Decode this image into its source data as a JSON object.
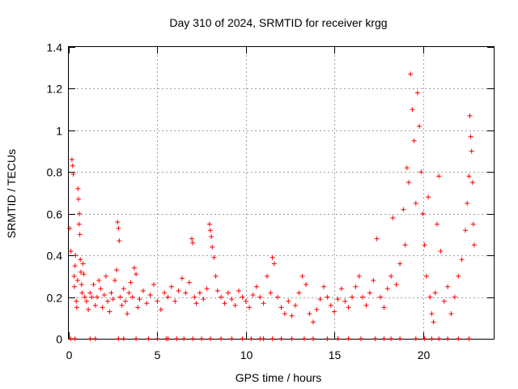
{
  "chart_data": {
    "type": "scatter",
    "title": "Day 310 of 2024, SRMTID for receiver krgg",
    "xlabel": "GPS time / hours",
    "ylabel": "SRMTID / TECUs",
    "xlim": [
      0,
      24
    ],
    "ylim": [
      0,
      1.4
    ],
    "xticks": [
      0,
      5,
      10,
      15,
      20
    ],
    "xtick_labels": [
      "0",
      "5",
      "10",
      "15",
      "20"
    ],
    "yticks": [
      0,
      0.2,
      0.4,
      0.6,
      0.8,
      1.0,
      1.2,
      1.4
    ],
    "ytick_labels": [
      "0",
      "0.2",
      "0.4",
      "0.6",
      "0.8",
      "1",
      "1.2",
      "1.4"
    ],
    "grid": true,
    "marker": "+",
    "color": "#ff0000",
    "series": [
      {
        "name": "SRMTID",
        "points": [
          [
            0.05,
            0.53
          ],
          [
            0.12,
            0.42
          ],
          [
            0.18,
            0.86
          ],
          [
            0.22,
            0.83
          ],
          [
            0.25,
            0.79
          ],
          [
            0.3,
            0.3
          ],
          [
            0.32,
            0.25
          ],
          [
            0.35,
            0.35
          ],
          [
            0.38,
            0.4
          ],
          [
            0.42,
            0.18
          ],
          [
            0.45,
            0.15
          ],
          [
            0.5,
            0.28
          ],
          [
            0.52,
            0.72
          ],
          [
            0.55,
            0.67
          ],
          [
            0.58,
            0.55
          ],
          [
            0.6,
            0.6
          ],
          [
            0.62,
            0.5
          ],
          [
            0.65,
            0.38
          ],
          [
            0.68,
            0.32
          ],
          [
            0.72,
            0.26
          ],
          [
            0.75,
            0.22
          ],
          [
            0.8,
            0.36
          ],
          [
            0.85,
            0.31
          ],
          [
            0.9,
            0.2
          ],
          [
            1.0,
            0.18
          ],
          [
            1.1,
            0.14
          ],
          [
            1.2,
            0.22
          ],
          [
            1.3,
            0.2
          ],
          [
            1.4,
            0.26
          ],
          [
            1.5,
            0.16
          ],
          [
            1.6,
            0.2
          ],
          [
            1.7,
            0.28
          ],
          [
            1.8,
            0.24
          ],
          [
            1.9,
            0.15
          ],
          [
            2.0,
            0.21
          ],
          [
            2.1,
            0.3
          ],
          [
            2.2,
            0.18
          ],
          [
            2.3,
            0.13
          ],
          [
            2.4,
            0.22
          ],
          [
            2.5,
            0.19
          ],
          [
            2.6,
            0.28
          ],
          [
            2.7,
            0.33
          ],
          [
            2.75,
            0.56
          ],
          [
            2.8,
            0.53
          ],
          [
            2.85,
            0.47
          ],
          [
            2.9,
            0.2
          ],
          [
            3.0,
            0.16
          ],
          [
            3.1,
            0.24
          ],
          [
            3.2,
            0.18
          ],
          [
            3.3,
            0.12
          ],
          [
            3.4,
            0.22
          ],
          [
            3.5,
            0.27
          ],
          [
            3.6,
            0.2
          ],
          [
            3.7,
            0.34
          ],
          [
            3.8,
            0.31
          ],
          [
            3.9,
            0.15
          ],
          [
            4.0,
            0.19
          ],
          [
            4.2,
            0.23
          ],
          [
            4.4,
            0.17
          ],
          [
            4.6,
            0.21
          ],
          [
            4.8,
            0.26
          ],
          [
            5.0,
            0.18
          ],
          [
            5.2,
            0.14
          ],
          [
            5.4,
            0.22
          ],
          [
            5.6,
            0.2
          ],
          [
            5.8,
            0.25
          ],
          [
            6.0,
            0.18
          ],
          [
            6.2,
            0.23
          ],
          [
            6.4,
            0.29
          ],
          [
            6.6,
            0.22
          ],
          [
            6.8,
            0.27
          ],
          [
            6.95,
            0.48
          ],
          [
            7.0,
            0.46
          ],
          [
            7.1,
            0.2
          ],
          [
            7.2,
            0.17
          ],
          [
            7.4,
            0.22
          ],
          [
            7.6,
            0.19
          ],
          [
            7.8,
            0.24
          ],
          [
            7.95,
            0.55
          ],
          [
            8.0,
            0.52
          ],
          [
            8.05,
            0.49
          ],
          [
            8.1,
            0.44
          ],
          [
            8.2,
            0.39
          ],
          [
            8.3,
            0.3
          ],
          [
            8.4,
            0.23
          ],
          [
            8.6,
            0.2
          ],
          [
            8.8,
            0.17
          ],
          [
            9.0,
            0.22
          ],
          [
            9.2,
            0.19
          ],
          [
            9.4,
            0.16
          ],
          [
            9.6,
            0.23
          ],
          [
            9.8,
            0.2
          ],
          [
            10.0,
            0.18
          ],
          [
            10.2,
            0.15
          ],
          [
            10.4,
            0.21
          ],
          [
            10.6,
            0.25
          ],
          [
            10.8,
            0.2
          ],
          [
            11.0,
            0.17
          ],
          [
            11.2,
            0.3
          ],
          [
            11.4,
            0.22
          ],
          [
            11.5,
            0.39
          ],
          [
            11.6,
            0.36
          ],
          [
            11.8,
            0.2
          ],
          [
            12.0,
            0.15
          ],
          [
            12.2,
            0.12
          ],
          [
            12.4,
            0.18
          ],
          [
            12.6,
            0.11
          ],
          [
            12.8,
            0.16
          ],
          [
            13.0,
            0.22
          ],
          [
            13.2,
            0.3
          ],
          [
            13.4,
            0.26
          ],
          [
            13.6,
            0.12
          ],
          [
            13.8,
            0.08
          ],
          [
            14.0,
            0.14
          ],
          [
            14.2,
            0.19
          ],
          [
            14.4,
            0.25
          ],
          [
            14.6,
            0.2
          ],
          [
            14.8,
            0.16
          ],
          [
            15.0,
            0.13
          ],
          [
            15.2,
            0.19
          ],
          [
            15.4,
            0.24
          ],
          [
            15.6,
            0.18
          ],
          [
            15.8,
            0.15
          ],
          [
            16.0,
            0.2
          ],
          [
            16.2,
            0.25
          ],
          [
            16.4,
            0.3
          ],
          [
            16.6,
            0.2
          ],
          [
            16.8,
            0.16
          ],
          [
            17.0,
            0.22
          ],
          [
            17.2,
            0.28
          ],
          [
            17.4,
            0.48
          ],
          [
            17.6,
            0.2
          ],
          [
            17.8,
            0.15
          ],
          [
            18.0,
            0.24
          ],
          [
            18.2,
            0.3
          ],
          [
            18.3,
            0.58
          ],
          [
            18.5,
            0.26
          ],
          [
            18.7,
            0.36
          ],
          [
            18.9,
            0.62
          ],
          [
            19.0,
            0.45
          ],
          [
            19.1,
            0.82
          ],
          [
            19.2,
            0.75
          ],
          [
            19.3,
            1.27
          ],
          [
            19.4,
            1.1
          ],
          [
            19.5,
            0.95
          ],
          [
            19.6,
            0.65
          ],
          [
            19.7,
            1.18
          ],
          [
            19.8,
            1.02
          ],
          [
            19.9,
            0.8
          ],
          [
            20.0,
            0.6
          ],
          [
            20.1,
            0.45
          ],
          [
            20.2,
            0.3
          ],
          [
            20.3,
            0.68
          ],
          [
            20.4,
            0.2
          ],
          [
            20.5,
            0.12
          ],
          [
            20.6,
            0.08
          ],
          [
            20.7,
            0.22
          ],
          [
            20.8,
            0.55
          ],
          [
            20.9,
            0.78
          ],
          [
            21.0,
            0.42
          ],
          [
            21.2,
            0.18
          ],
          [
            21.4,
            0.25
          ],
          [
            21.6,
            0.12
          ],
          [
            21.8,
            0.2
          ],
          [
            22.0,
            0.3
          ],
          [
            22.2,
            0.38
          ],
          [
            22.4,
            0.52
          ],
          [
            22.5,
            0.65
          ],
          [
            22.6,
            0.78
          ],
          [
            22.65,
            1.07
          ],
          [
            22.7,
            0.97
          ],
          [
            22.75,
            0.9
          ],
          [
            22.8,
            0.75
          ],
          [
            22.85,
            0.55
          ],
          [
            22.9,
            0.45
          ]
        ]
      }
    ],
    "zero_points": [
      0.1,
      0.35,
      1.2,
      1.5,
      2.8,
      3.1,
      3.8,
      4.5,
      5.0,
      5.5,
      5.6,
      6.1,
      6.5,
      7.0,
      7.5,
      8.0,
      8.6,
      9.2,
      9.8,
      10.3,
      10.8,
      11.0,
      11.5,
      12.0,
      12.6,
      13.3,
      13.8,
      14.6,
      15.2,
      15.8,
      16.5,
      17.3,
      17.8,
      18.2,
      18.7,
      19.6,
      20.1,
      20.5,
      20.9,
      21.4,
      22.0,
      22.6
    ]
  }
}
